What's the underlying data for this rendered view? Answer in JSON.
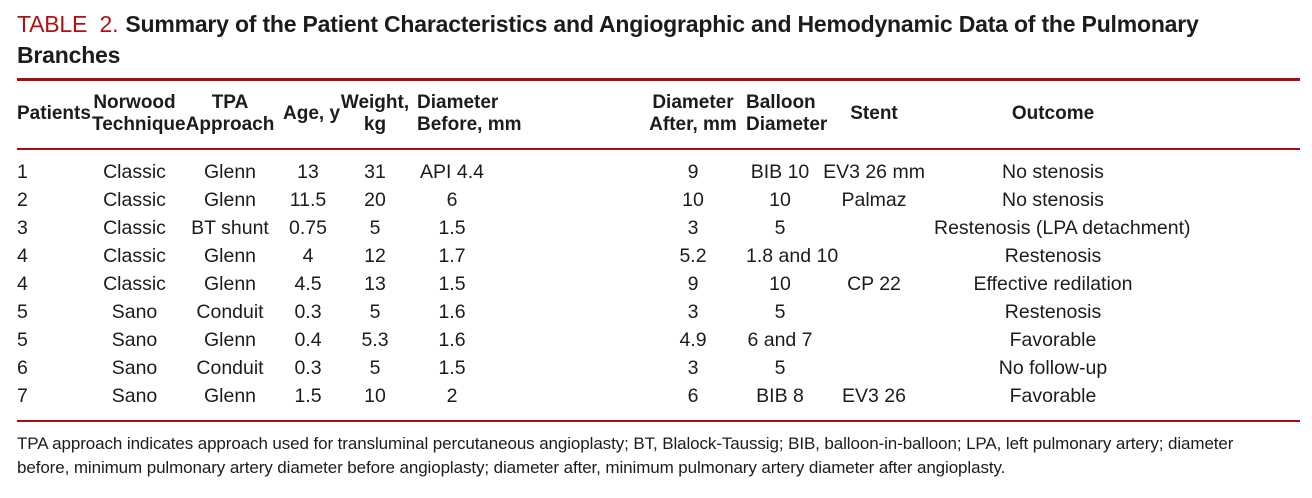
{
  "colors": {
    "rule_red": "#a50e13",
    "label_red": "#b11116",
    "text": "#1c1c1c"
  },
  "title": {
    "label": "TABLE  2.",
    "line1": "Summary of the Patient Characteristics and Angiographic and Hemodynamic Data of the Pulmonary",
    "line2": "Branches"
  },
  "table": {
    "headers": [
      {
        "id": "patients",
        "label": "Patients"
      },
      {
        "id": "norwood-technique",
        "label": "Norwood\nTechnique"
      },
      {
        "id": "tpa-approach",
        "label": "TPA\nApproach"
      },
      {
        "id": "age",
        "label": "Age, y"
      },
      {
        "id": "weight",
        "label": "Weight,\nkg"
      },
      {
        "id": "diameter-before",
        "label": "Diameter\nBefore, mm"
      },
      {
        "id": "diameter-after",
        "label": "Diameter\nAfter, mm"
      },
      {
        "id": "balloon-diameter",
        "label": "Balloon\nDiameter"
      },
      {
        "id": "stent",
        "label": "Stent"
      },
      {
        "id": "outcome",
        "label": "Outcome"
      }
    ],
    "rows": [
      [
        "1",
        "Classic",
        "Glenn",
        "13",
        "31",
        "API 4.4",
        "9",
        "BIB 10",
        "EV3 26 mm",
        "No stenosis"
      ],
      [
        "2",
        "Classic",
        "Glenn",
        "11.5",
        "20",
        "6",
        "10",
        "10",
        "Palmaz",
        "No stenosis"
      ],
      [
        "3",
        "Classic",
        "BT shunt",
        "0.75",
        "5",
        "1.5",
        "3",
        "5",
        "",
        "Restenosis (LPA detachment)"
      ],
      [
        "4",
        "Classic",
        "Glenn",
        "4",
        "12",
        "1.7",
        "5.2",
        "1.8 and 10",
        "",
        "Restenosis"
      ],
      [
        "4",
        "Classic",
        "Glenn",
        "4.5",
        "13",
        "1.5",
        "9",
        "10",
        "CP 22",
        "Effective redilation"
      ],
      [
        "5",
        "Sano",
        "Conduit",
        "0.3",
        "5",
        "1.6",
        "3",
        "5",
        "",
        "Restenosis"
      ],
      [
        "5",
        "Sano",
        "Glenn",
        "0.4",
        "5.3",
        "1.6",
        "4.9",
        "6 and 7",
        "",
        "Favorable"
      ],
      [
        "6",
        "Sano",
        "Conduit",
        "0.3",
        "5",
        "1.5",
        "3",
        "5",
        "",
        "No follow-up"
      ],
      [
        "7",
        "Sano",
        "Glenn",
        "1.5",
        "10",
        "2",
        "6",
        "BIB 8",
        "EV3 26",
        "Favorable"
      ]
    ]
  },
  "footnote": {
    "line1": "TPA approach indicates approach used for transluminal percutaneous angioplasty; BT, Blalock-Taussig; BIB, balloon-in-balloon; LPA, left pulmonary artery; diameter",
    "line2": "before, minimum pulmonary artery diameter before angioplasty; diameter after, minimum pulmonary artery diameter after angioplasty."
  }
}
